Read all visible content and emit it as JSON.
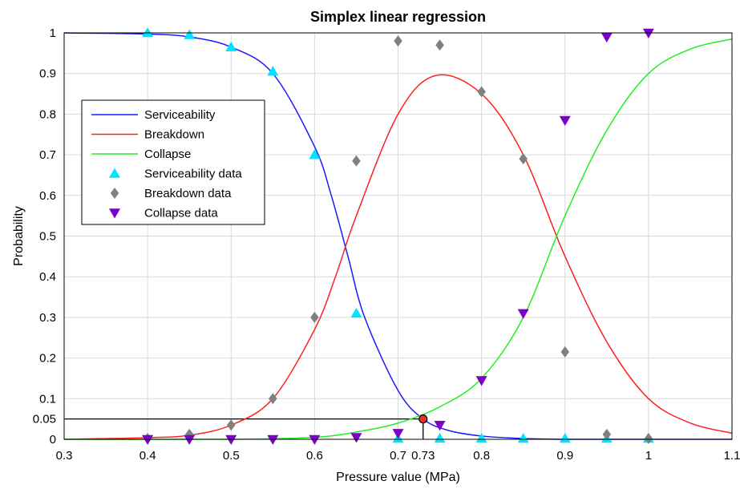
{
  "chart_data": {
    "type": "line",
    "title": "Simplex linear regression",
    "xlabel": "Pressure value (MPa)",
    "ylabel": "Probability",
    "xlim": [
      0.3,
      1.1
    ],
    "ylim": [
      0,
      1
    ],
    "grid": true,
    "legend_position": "top-left",
    "x_ticks": [
      "0.3",
      "0.4",
      "0.5",
      "0.6",
      "0.7",
      "0.73",
      "0.8",
      "0.9",
      "1",
      "1.1"
    ],
    "x_tick_values": [
      0.3,
      0.4,
      0.5,
      0.6,
      0.7,
      0.73,
      0.8,
      0.9,
      1.0,
      1.1
    ],
    "y_ticks": [
      "0",
      "0.05",
      "0.1",
      "0.2",
      "0.3",
      "0.4",
      "0.5",
      "0.6",
      "0.7",
      "0.8",
      "0.9",
      "1"
    ],
    "y_tick_values": [
      0,
      0.05,
      0.1,
      0.2,
      0.3,
      0.4,
      0.5,
      0.6,
      0.7,
      0.8,
      0.9,
      1.0
    ],
    "curves": [
      {
        "name": "Serviceability",
        "color": "#1a1aff",
        "points": [
          [
            0.3,
            1.0
          ],
          [
            0.4,
            0.997
          ],
          [
            0.45,
            0.99
          ],
          [
            0.5,
            0.965
          ],
          [
            0.55,
            0.9
          ],
          [
            0.6,
            0.72
          ],
          [
            0.62,
            0.6
          ],
          [
            0.64,
            0.45
          ],
          [
            0.66,
            0.3
          ],
          [
            0.7,
            0.12
          ],
          [
            0.73,
            0.05
          ],
          [
            0.76,
            0.022
          ],
          [
            0.8,
            0.008
          ],
          [
            0.85,
            0.002
          ],
          [
            0.9,
            0.0
          ],
          [
            1.0,
            0.0
          ],
          [
            1.1,
            0.0
          ]
        ]
      },
      {
        "name": "Breakdown",
        "color": "#ff2020",
        "points": [
          [
            0.3,
            0.0
          ],
          [
            0.4,
            0.004
          ],
          [
            0.45,
            0.01
          ],
          [
            0.5,
            0.035
          ],
          [
            0.55,
            0.1
          ],
          [
            0.6,
            0.27
          ],
          [
            0.625,
            0.4
          ],
          [
            0.65,
            0.55
          ],
          [
            0.7,
            0.8
          ],
          [
            0.745,
            0.895
          ],
          [
            0.8,
            0.85
          ],
          [
            0.85,
            0.7
          ],
          [
            0.9,
            0.45
          ],
          [
            0.95,
            0.24
          ],
          [
            1.0,
            0.1
          ],
          [
            1.05,
            0.04
          ],
          [
            1.1,
            0.015
          ]
        ]
      },
      {
        "name": "Collapse",
        "color": "#22ee22",
        "points": [
          [
            0.3,
            0.0
          ],
          [
            0.5,
            0.0
          ],
          [
            0.6,
            0.005
          ],
          [
            0.65,
            0.018
          ],
          [
            0.7,
            0.04
          ],
          [
            0.75,
            0.08
          ],
          [
            0.8,
            0.15
          ],
          [
            0.85,
            0.3
          ],
          [
            0.9,
            0.55
          ],
          [
            0.95,
            0.76
          ],
          [
            1.0,
            0.9
          ],
          [
            1.05,
            0.96
          ],
          [
            1.1,
            0.985
          ]
        ]
      }
    ],
    "markers": [
      {
        "name": "Serviceability data",
        "color": "#00e5ff",
        "shape": "triangle-up",
        "points": [
          [
            0.4,
            1.0
          ],
          [
            0.45,
            0.995
          ],
          [
            0.5,
            0.965
          ],
          [
            0.55,
            0.905
          ],
          [
            0.6,
            0.7
          ],
          [
            0.65,
            0.31
          ],
          [
            0.7,
            0.002
          ],
          [
            0.75,
            0.002
          ],
          [
            0.8,
            0.002
          ],
          [
            0.85,
            0.002
          ],
          [
            0.9,
            0.002
          ],
          [
            0.95,
            0.002
          ],
          [
            1.0,
            0.002
          ]
        ]
      },
      {
        "name": "Breakdown data",
        "color": "#808080",
        "shape": "diamond",
        "points": [
          [
            0.4,
            0.002
          ],
          [
            0.45,
            0.012
          ],
          [
            0.5,
            0.035
          ],
          [
            0.55,
            0.1
          ],
          [
            0.6,
            0.3
          ],
          [
            0.65,
            0.685
          ],
          [
            0.7,
            0.98
          ],
          [
            0.75,
            0.97
          ],
          [
            0.8,
            0.855
          ],
          [
            0.85,
            0.69
          ],
          [
            0.9,
            0.215
          ],
          [
            0.95,
            0.012
          ],
          [
            1.0,
            0.002
          ]
        ]
      },
      {
        "name": "Collapse data",
        "color": "#7b00c8",
        "shape": "triangle-down",
        "points": [
          [
            0.4,
            0.0
          ],
          [
            0.45,
            0.0
          ],
          [
            0.5,
            0.0
          ],
          [
            0.55,
            0.0
          ],
          [
            0.6,
            0.0
          ],
          [
            0.65,
            0.005
          ],
          [
            0.7,
            0.015
          ],
          [
            0.75,
            0.035
          ],
          [
            0.8,
            0.145
          ],
          [
            0.85,
            0.31
          ],
          [
            0.9,
            0.785
          ],
          [
            0.95,
            0.99
          ],
          [
            1.0,
            1.0
          ]
        ]
      }
    ],
    "annotation": {
      "point": [
        0.73,
        0.05
      ],
      "color": "#e83030"
    }
  }
}
